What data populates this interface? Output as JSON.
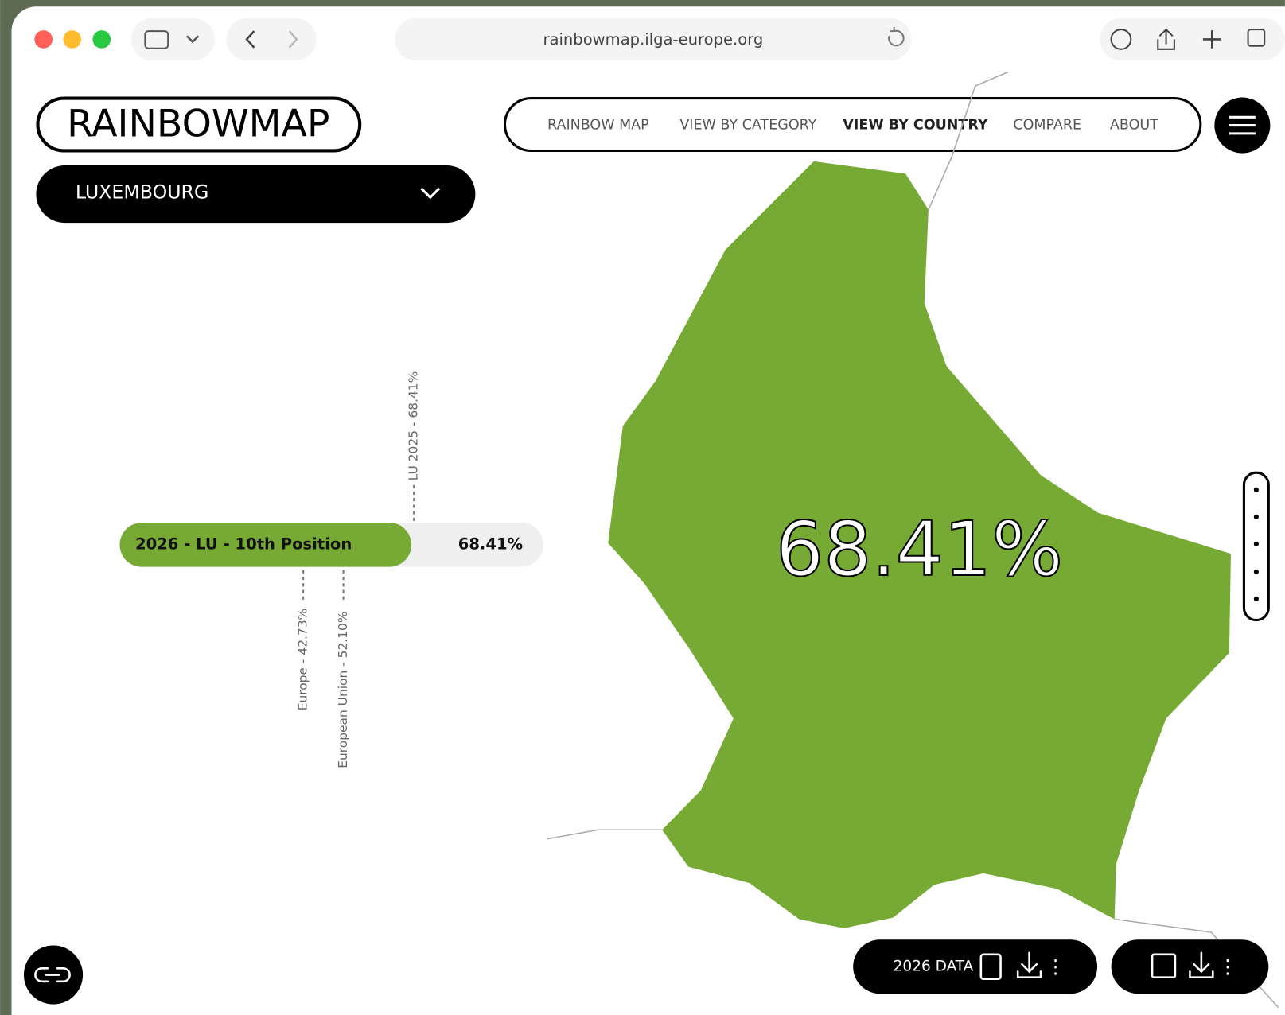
{
  "browser": {
    "url": "rainbowmap.ilga-europe.org"
  },
  "header": {
    "logo": "RAINBOWMAP",
    "nav": [
      "RAINBOW MAP",
      "VIEW BY CATEGORY",
      "VIEW BY COUNTRY",
      "COMPARE",
      "ABOUT"
    ]
  },
  "country_select": "LUXEMBOURG",
  "score_bar": {
    "label": "2026 - LU - 10th Position",
    "value_label": "68.41%",
    "markers": [
      "LU 2025 - 68.41%",
      "Europe - 42.73%",
      "European Union - 52.10%"
    ]
  },
  "map": {
    "score_label": "68.41%"
  },
  "footer": {
    "data_button": "2026 DATA"
  }
}
